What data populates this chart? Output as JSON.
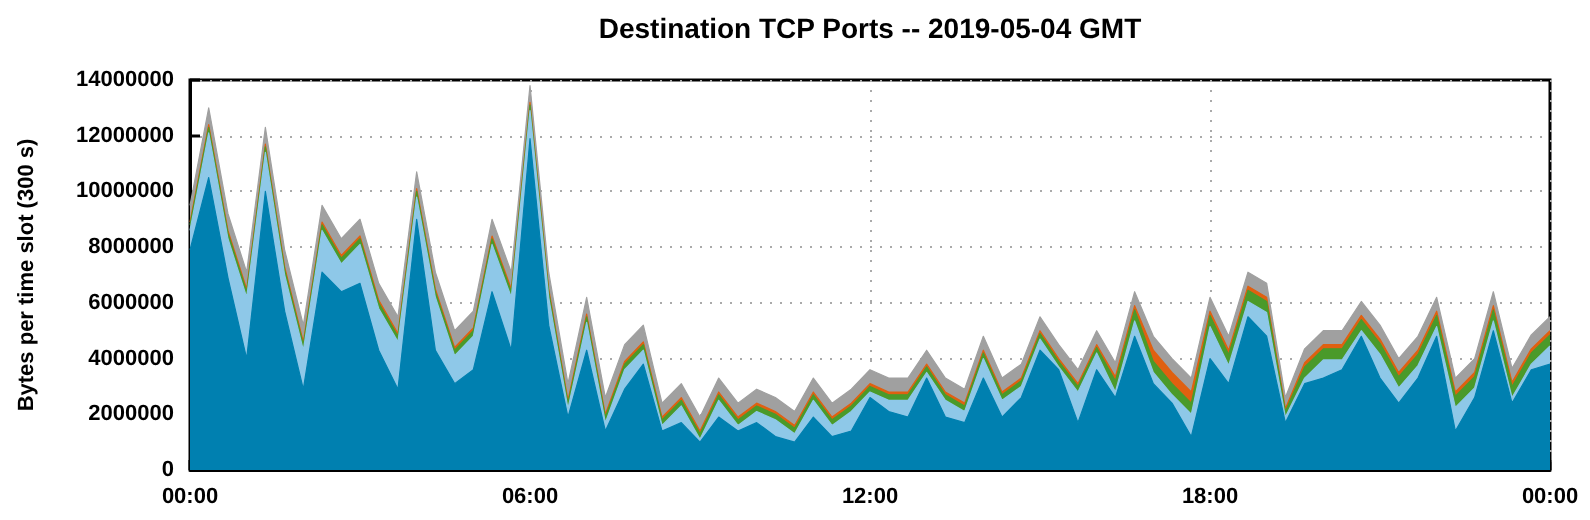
{
  "chart_data": {
    "type": "area",
    "title": "Destination TCP Ports -- 2019-05-04 GMT",
    "ylabel": "Bytes per time slot (300 s)",
    "stacked": true,
    "grid": true,
    "legend": false,
    "marker": "none",
    "xlim": [
      0,
      24
    ],
    "xticks": [
      {
        "value": 0,
        "label": "00:00"
      },
      {
        "value": 6,
        "label": "06:00"
      },
      {
        "value": 12,
        "label": "12:00"
      },
      {
        "value": 18,
        "label": "18:00"
      },
      {
        "value": 24,
        "label": "00:00"
      }
    ],
    "ylim": [
      0,
      14000000
    ],
    "yticks": [
      0,
      2000000,
      4000000,
      6000000,
      8000000,
      10000000,
      12000000,
      14000000
    ],
    "x": [
      0,
      0.33,
      0.67,
      1,
      1.33,
      1.67,
      2,
      2.33,
      2.67,
      3,
      3.33,
      3.67,
      4,
      4.33,
      4.67,
      5,
      5.33,
      5.67,
      6,
      6.33,
      6.67,
      7,
      7.33,
      7.67,
      8,
      8.33,
      8.67,
      9,
      9.33,
      9.67,
      10,
      10.33,
      10.67,
      11,
      11.33,
      11.67,
      12,
      12.33,
      12.67,
      13,
      13.33,
      13.67,
      14,
      14.33,
      14.67,
      15,
      15.33,
      15.67,
      16,
      16.33,
      16.67,
      17,
      17.33,
      17.67,
      18,
      18.33,
      18.67,
      19,
      19.33,
      19.67,
      20,
      20.33,
      20.67,
      21,
      21.33,
      21.67,
      22,
      22.33,
      22.67,
      23,
      23.33,
      23.67,
      24
    ],
    "series": [
      {
        "color": "#0080b0",
        "values": [
          7900000,
          10500000,
          6900000,
          4000000,
          10000000,
          5700000,
          2900000,
          7100000,
          6400000,
          6700000,
          4300000,
          2900000,
          9000000,
          4300000,
          3100000,
          3600000,
          6400000,
          4300000,
          11900000,
          5200000,
          1900000,
          4300000,
          1400000,
          2900000,
          3800000,
          1400000,
          1700000,
          1000000,
          1900000,
          1400000,
          1700000,
          1200000,
          1000000,
          1900000,
          1200000,
          1400000,
          2600000,
          2100000,
          1900000,
          3300000,
          1900000,
          1700000,
          3300000,
          1900000,
          2600000,
          4300000,
          3600000,
          1700000,
          3600000,
          2600000,
          4800000,
          3100000,
          2400000,
          1200000,
          4000000,
          3100000,
          5500000,
          4800000,
          1700000,
          3100000,
          3300000,
          3600000,
          4800000,
          3300000,
          2400000,
          3300000,
          4800000,
          1400000,
          2600000,
          5000000,
          2400000,
          3600000,
          3800000
        ]
      },
      {
        "color": "#8ec8e8",
        "values": [
          700000,
          1600000,
          1400000,
          2200000,
          1400000,
          1300000,
          1400000,
          1500000,
          1000000,
          1400000,
          1500000,
          1700000,
          800000,
          1900000,
          1000000,
          1200000,
          1700000,
          1900000,
          1000000,
          1000000,
          300000,
          1000000,
          300000,
          700000,
          500000,
          200000,
          600000,
          100000,
          600000,
          200000,
          400000,
          600000,
          300000,
          600000,
          400000,
          700000,
          200000,
          400000,
          600000,
          200000,
          600000,
          400000,
          700000,
          600000,
          400000,
          400000,
          100000,
          1100000,
          600000,
          200000,
          550000,
          400000,
          300000,
          800000,
          1150000,
          650000,
          550000,
          850000,
          200000,
          200000,
          650000,
          350000,
          200000,
          850000,
          550000,
          450000,
          350000,
          850000,
          350000,
          350000,
          200000,
          200000,
          650000
        ]
      },
      {
        "color": "#4a9a2a",
        "values": [
          200000,
          200000,
          200000,
          200000,
          200000,
          200000,
          200000,
          200000,
          200000,
          200000,
          200000,
          200000,
          200000,
          200000,
          200000,
          200000,
          200000,
          200000,
          200000,
          200000,
          200000,
          200000,
          200000,
          200000,
          200000,
          200000,
          200000,
          200000,
          200000,
          200000,
          200000,
          200000,
          200000,
          200000,
          200000,
          200000,
          200000,
          200000,
          200000,
          200000,
          200000,
          200000,
          200000,
          200000,
          200000,
          200000,
          200000,
          200000,
          200000,
          400000,
          400000,
          400000,
          400000,
          400000,
          400000,
          400000,
          400000,
          400000,
          200000,
          400000,
          400000,
          400000,
          400000,
          400000,
          400000,
          400000,
          400000,
          400000,
          400000,
          400000,
          400000,
          400000,
          400000
        ]
      },
      {
        "color": "#e06010",
        "values": [
          100000,
          100000,
          100000,
          100000,
          100000,
          100000,
          100000,
          100000,
          100000,
          100000,
          100000,
          100000,
          100000,
          100000,
          100000,
          100000,
          100000,
          100000,
          100000,
          100000,
          100000,
          100000,
          100000,
          100000,
          100000,
          100000,
          100000,
          100000,
          100000,
          100000,
          100000,
          100000,
          100000,
          100000,
          100000,
          100000,
          100000,
          100000,
          100000,
          100000,
          100000,
          100000,
          100000,
          100000,
          100000,
          100000,
          100000,
          100000,
          100000,
          150000,
          150000,
          400000,
          400000,
          400000,
          150000,
          150000,
          150000,
          150000,
          100000,
          150000,
          150000,
          150000,
          150000,
          150000,
          150000,
          150000,
          150000,
          150000,
          150000,
          150000,
          150000,
          150000,
          150000
        ]
      },
      {
        "color": "#a0a0a0",
        "values": [
          600000,
          600000,
          600000,
          600000,
          600000,
          600000,
          600000,
          600000,
          600000,
          600000,
          600000,
          600000,
          600000,
          600000,
          600000,
          600000,
          600000,
          600000,
          600000,
          600000,
          600000,
          600000,
          600000,
          600000,
          600000,
          500000,
          500000,
          500000,
          500000,
          500000,
          500000,
          500000,
          500000,
          500000,
          500000,
          500000,
          500000,
          500000,
          500000,
          500000,
          500000,
          500000,
          500000,
          500000,
          500000,
          500000,
          500000,
          500000,
          500000,
          500000,
          500000,
          500000,
          500000,
          500000,
          500000,
          500000,
          500000,
          500000,
          400000,
          500000,
          500000,
          500000,
          500000,
          500000,
          500000,
          500000,
          500000,
          500000,
          500000,
          500000,
          500000,
          500000,
          500000
        ]
      }
    ]
  }
}
